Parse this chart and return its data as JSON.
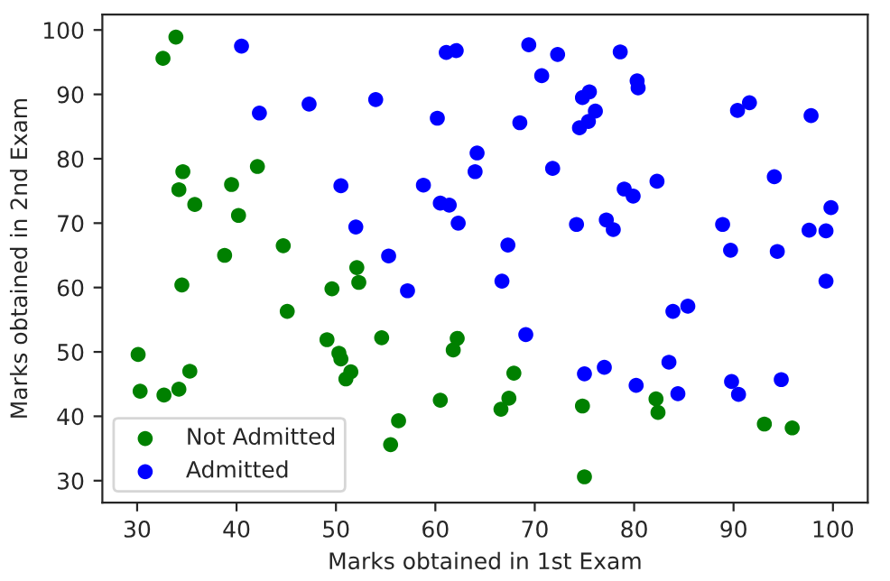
{
  "chart_data": {
    "type": "scatter",
    "xlabel": "Marks obtained in 1st Exam",
    "ylabel": "Marks obtained in 2nd Exam",
    "series": [
      {
        "name": "Not Admitted",
        "color": "#008000",
        "x": [
          34.6,
          30.3,
          35.8,
          45.1,
          95.9,
          75.0,
          39.5,
          67.9,
          67.4,
          50.5,
          34.2,
          93.1,
          61.8,
          38.8,
          52.1,
          40.2,
          54.6,
          33.9,
          74.8,
          34.2,
          51.5,
          82.4,
          51.0,
          62.2,
          34.5,
          50.3,
          49.6,
          32.6,
          35.3,
          56.3,
          30.1,
          44.7,
          66.6,
          49.1,
          32.7,
          60.5,
          82.2,
          42.1,
          52.3,
          55.5
        ],
        "values": [
          78.0,
          43.9,
          72.9,
          56.3,
          38.2,
          30.6,
          76.0,
          46.7,
          42.8,
          48.9,
          44.2,
          38.8,
          50.3,
          65.0,
          63.1,
          71.2,
          52.2,
          98.9,
          41.6,
          75.2,
          46.9,
          40.6,
          45.8,
          52.1,
          60.4,
          49.8,
          59.8,
          95.6,
          47.0,
          39.3,
          49.6,
          66.5,
          41.1,
          51.9,
          43.3,
          42.5,
          42.7,
          78.8,
          60.8,
          35.6
        ]
      },
      {
        "name": "Admitted",
        "color": "#0000ff",
        "x": [
          60.2,
          79.0,
          61.1,
          75.0,
          76.1,
          84.4,
          82.3,
          69.4,
          54.0,
          69.1,
          70.7,
          77.0,
          89.7,
          77.9,
          62.3,
          80.2,
          61.4,
          85.4,
          52.0,
          64.2,
          83.9,
          94.4,
          77.2,
          97.8,
          62.1,
          91.6,
          79.9,
          99.3,
          90.5,
          97.6,
          74.2,
          71.8,
          75.4,
          40.5,
          80.3,
          66.7,
          64.0,
          72.3,
          60.5,
          58.8,
          99.8,
          47.3,
          50.5,
          88.9,
          94.8,
          67.3,
          57.2,
          80.4,
          68.5,
          75.5,
          78.6,
          94.1,
          90.4,
          74.5,
          89.8,
          83.5,
          42.3,
          99.3,
          55.3,
          74.8
        ],
        "values": [
          86.3,
          75.3,
          96.5,
          46.6,
          87.4,
          43.5,
          76.5,
          97.7,
          89.2,
          52.7,
          92.9,
          47.6,
          65.8,
          69.0,
          70.0,
          44.8,
          72.8,
          57.1,
          69.4,
          80.9,
          56.3,
          65.6,
          70.5,
          86.7,
          96.8,
          88.7,
          74.2,
          61.0,
          43.4,
          68.9,
          69.8,
          78.5,
          85.8,
          97.5,
          92.1,
          61.0,
          78.0,
          96.2,
          73.1,
          75.9,
          72.4,
          88.5,
          75.8,
          69.8,
          45.7,
          66.6,
          59.5,
          91.0,
          85.6,
          90.4,
          96.6,
          77.2,
          87.5,
          84.8,
          45.4,
          48.4,
          87.1,
          68.8,
          64.9,
          89.5
        ]
      }
    ],
    "xlim": [
      26.5,
      103.5
    ],
    "ylim": [
      26.6,
      102.4
    ],
    "xticks": [
      30,
      40,
      50,
      60,
      70,
      80,
      90,
      100
    ],
    "yticks": [
      30,
      40,
      50,
      60,
      70,
      80,
      90,
      100
    ],
    "grid": false,
    "legend": "bottom left",
    "marker": "circle"
  }
}
